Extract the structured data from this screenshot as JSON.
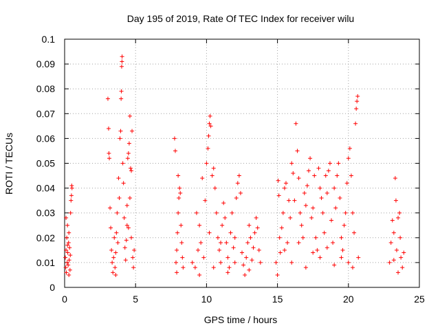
{
  "chart_data": {
    "type": "scatter",
    "title": "Day 195 of 2019, Rate Of TEC Index for receiver wilu",
    "xlabel": "GPS time / hours",
    "ylabel": "ROTI / TECUs",
    "xlim": [
      0,
      25
    ],
    "ylim": [
      0,
      0.1
    ],
    "xticks": [
      "0",
      "5",
      "10",
      "15",
      "20",
      "25"
    ],
    "yticks": [
      "0",
      "0.01",
      "0.02",
      "0.03",
      "0.04",
      "0.05",
      "0.06",
      "0.07",
      "0.08",
      "0.09",
      "0.1"
    ],
    "grid": true,
    "marker": "+",
    "color": "#ff0000",
    "series": [
      {
        "points": [
          [
            0.05,
            0.012
          ],
          [
            0.08,
            0.008
          ],
          [
            0.1,
            0.015
          ],
          [
            0.12,
            0.006
          ],
          [
            0.15,
            0.02
          ],
          [
            0.18,
            0.01
          ],
          [
            0.2,
            0.025
          ],
          [
            0.22,
            0.014
          ],
          [
            0.25,
            0.009
          ],
          [
            0.28,
            0.018
          ],
          [
            0.3,
            0.022
          ],
          [
            0.32,
            0.011
          ],
          [
            0.35,
            0.016
          ],
          [
            0.38,
            0.007
          ],
          [
            0.4,
            0.013
          ],
          [
            0.42,
            0.03
          ],
          [
            0.45,
            0.035
          ],
          [
            0.48,
            0.037
          ],
          [
            0.5,
            0.041
          ],
          [
            0.52,
            0.04
          ],
          [
            0.1,
            0.028
          ],
          [
            0.2,
            0.017
          ],
          [
            0.3,
            0.005
          ],
          [
            3.05,
            0.076
          ],
          [
            3.1,
            0.064
          ],
          [
            3.12,
            0.054
          ],
          [
            3.15,
            0.052
          ],
          [
            3.2,
            0.032
          ],
          [
            3.25,
            0.024
          ],
          [
            3.3,
            0.015
          ],
          [
            3.35,
            0.01
          ],
          [
            3.4,
            0.006
          ],
          [
            3.45,
            0.012
          ],
          [
            3.5,
            0.02
          ],
          [
            3.55,
            0.008
          ],
          [
            3.6,
            0.014
          ],
          [
            3.65,
            0.022
          ],
          [
            3.7,
            0.03
          ],
          [
            3.75,
            0.018
          ],
          [
            3.8,
            0.044
          ],
          [
            3.85,
            0.036
          ],
          [
            3.9,
            0.06
          ],
          [
            3.95,
            0.063
          ],
          [
            3.98,
            0.076
          ],
          [
            4.0,
            0.079
          ],
          [
            4.02,
            0.089
          ],
          [
            4.04,
            0.091
          ],
          [
            4.05,
            0.093
          ],
          [
            4.1,
            0.05
          ],
          [
            4.15,
            0.042
          ],
          [
            4.2,
            0.028
          ],
          [
            4.25,
            0.016
          ],
          [
            4.3,
            0.011
          ],
          [
            4.35,
            0.019
          ],
          [
            4.4,
            0.025
          ],
          [
            4.45,
            0.052
          ],
          [
            4.5,
            0.054
          ],
          [
            4.55,
            0.058
          ],
          [
            4.6,
            0.069
          ],
          [
            4.65,
            0.048
          ],
          [
            4.7,
            0.047
          ],
          [
            4.75,
            0.063
          ],
          [
            4.8,
            0.012
          ],
          [
            4.85,
            0.008
          ],
          [
            4.9,
            0.015
          ],
          [
            4.6,
            0.036
          ],
          [
            4.5,
            0.024
          ],
          [
            4.4,
            0.033
          ],
          [
            4.7,
            0.02
          ],
          [
            3.6,
            0.005
          ],
          [
            7.75,
            0.06
          ],
          [
            7.8,
            0.055
          ],
          [
            7.85,
            0.01
          ],
          [
            7.9,
            0.015
          ],
          [
            7.95,
            0.022
          ],
          [
            8.0,
            0.03
          ],
          [
            8.05,
            0.036
          ],
          [
            8.1,
            0.04
          ],
          [
            8.15,
            0.038
          ],
          [
            8.2,
            0.025
          ],
          [
            8.25,
            0.018
          ],
          [
            8.3,
            0.012
          ],
          [
            8.35,
            0.008
          ],
          [
            7.9,
            0.006
          ],
          [
            8.0,
            0.045
          ],
          [
            9.0,
            0.01
          ],
          [
            9.2,
            0.008
          ],
          [
            9.4,
            0.015
          ],
          [
            9.5,
            0.025
          ],
          [
            9.6,
            0.018
          ],
          [
            9.7,
            0.044
          ],
          [
            9.8,
            0.012
          ],
          [
            9.9,
            0.035
          ],
          [
            10.0,
            0.05
          ],
          [
            10.1,
            0.056
          ],
          [
            10.15,
            0.061
          ],
          [
            10.2,
            0.066
          ],
          [
            10.25,
            0.069
          ],
          [
            10.3,
            0.065
          ],
          [
            10.4,
            0.045
          ],
          [
            10.5,
            0.048
          ],
          [
            10.6,
            0.04
          ],
          [
            10.7,
            0.03
          ],
          [
            10.8,
            0.02
          ],
          [
            10.9,
            0.015
          ],
          [
            11.0,
            0.01
          ],
          [
            11.1,
            0.025
          ],
          [
            11.2,
            0.034
          ],
          [
            11.3,
            0.028
          ],
          [
            11.4,
            0.018
          ],
          [
            11.5,
            0.012
          ],
          [
            11.6,
            0.008
          ],
          [
            11.7,
            0.022
          ],
          [
            11.8,
            0.03
          ],
          [
            11.9,
            0.016
          ],
          [
            12.0,
            0.02
          ],
          [
            12.1,
            0.036
          ],
          [
            12.2,
            0.042
          ],
          [
            12.3,
            0.045
          ],
          [
            12.4,
            0.038
          ],
          [
            12.5,
            0.014
          ],
          [
            12.6,
            0.009
          ],
          [
            12.7,
            0.005
          ],
          [
            12.8,
            0.012
          ],
          [
            12.9,
            0.018
          ],
          [
            13.0,
            0.025
          ],
          [
            13.1,
            0.02
          ],
          [
            13.2,
            0.011
          ],
          [
            13.3,
            0.016
          ],
          [
            13.4,
            0.022
          ],
          [
            13.5,
            0.028
          ],
          [
            13.6,
            0.024
          ],
          [
            13.7,
            0.015
          ],
          [
            13.8,
            0.01
          ],
          [
            9.5,
            0.005
          ],
          [
            10.5,
            0.008
          ],
          [
            11.5,
            0.006
          ],
          [
            9.3,
            0.03
          ],
          [
            10.2,
            0.022
          ],
          [
            11.0,
            0.018
          ],
          [
            12.0,
            0.01
          ],
          [
            13.0,
            0.007
          ],
          [
            14.9,
            0.01
          ],
          [
            15.0,
            0.005
          ],
          [
            15.05,
            0.043
          ],
          [
            15.1,
            0.037
          ],
          [
            15.15,
            0.02
          ],
          [
            15.2,
            0.014
          ],
          [
            15.3,
            0.024
          ],
          [
            15.4,
            0.03
          ],
          [
            15.5,
            0.04
          ],
          [
            15.6,
            0.042
          ],
          [
            15.7,
            0.018
          ],
          [
            15.8,
            0.035
          ],
          [
            15.9,
            0.028
          ],
          [
            16.0,
            0.05
          ],
          [
            16.1,
            0.046
          ],
          [
            16.2,
            0.035
          ],
          [
            16.3,
            0.066
          ],
          [
            16.4,
            0.055
          ],
          [
            16.5,
            0.044
          ],
          [
            16.6,
            0.03
          ],
          [
            16.7,
            0.025
          ],
          [
            16.8,
            0.02
          ],
          [
            16.9,
            0.038
          ],
          [
            17.0,
            0.033
          ],
          [
            17.1,
            0.041
          ],
          [
            17.2,
            0.047
          ],
          [
            17.3,
            0.052
          ],
          [
            17.4,
            0.028
          ],
          [
            17.5,
            0.032
          ],
          [
            17.6,
            0.045
          ],
          [
            17.7,
            0.02
          ],
          [
            17.8,
            0.015
          ],
          [
            17.9,
            0.048
          ],
          [
            18.0,
            0.04
          ],
          [
            18.1,
            0.036
          ],
          [
            18.2,
            0.03
          ],
          [
            18.3,
            0.022
          ],
          [
            18.4,
            0.045
          ],
          [
            18.5,
            0.038
          ],
          [
            18.6,
            0.047
          ],
          [
            18.7,
            0.05
          ],
          [
            18.8,
            0.027
          ],
          [
            18.9,
            0.018
          ],
          [
            19.0,
            0.04
          ],
          [
            19.1,
            0.032
          ],
          [
            19.2,
            0.045
          ],
          [
            19.3,
            0.05
          ],
          [
            19.4,
            0.036
          ],
          [
            19.5,
            0.02
          ],
          [
            19.6,
            0.015
          ],
          [
            19.7,
            0.025
          ],
          [
            19.8,
            0.03
          ],
          [
            19.9,
            0.042
          ],
          [
            20.0,
            0.052
          ],
          [
            20.1,
            0.056
          ],
          [
            20.2,
            0.045
          ],
          [
            20.3,
            0.03
          ],
          [
            20.4,
            0.022
          ],
          [
            20.5,
            0.066
          ],
          [
            20.55,
            0.072
          ],
          [
            20.6,
            0.075
          ],
          [
            20.65,
            0.077
          ],
          [
            20.7,
            0.012
          ],
          [
            16.0,
            0.01
          ],
          [
            17.0,
            0.008
          ],
          [
            18.0,
            0.012
          ],
          [
            19.0,
            0.009
          ],
          [
            20.0,
            0.01
          ],
          [
            15.5,
            0.015
          ],
          [
            16.5,
            0.018
          ],
          [
            17.5,
            0.014
          ],
          [
            18.5,
            0.016
          ],
          [
            19.5,
            0.012
          ],
          [
            20.3,
            0.008
          ],
          [
            22.9,
            0.01
          ],
          [
            23.0,
            0.018
          ],
          [
            23.1,
            0.027
          ],
          [
            23.2,
            0.022
          ],
          [
            23.3,
            0.044
          ],
          [
            23.35,
            0.035
          ],
          [
            23.4,
            0.015
          ],
          [
            23.5,
            0.028
          ],
          [
            23.6,
            0.03
          ],
          [
            23.65,
            0.02
          ],
          [
            23.7,
            0.012
          ],
          [
            23.8,
            0.008
          ],
          [
            23.9,
            0.014
          ],
          [
            23.5,
            0.006
          ],
          [
            23.2,
            0.011
          ]
        ]
      }
    ]
  }
}
